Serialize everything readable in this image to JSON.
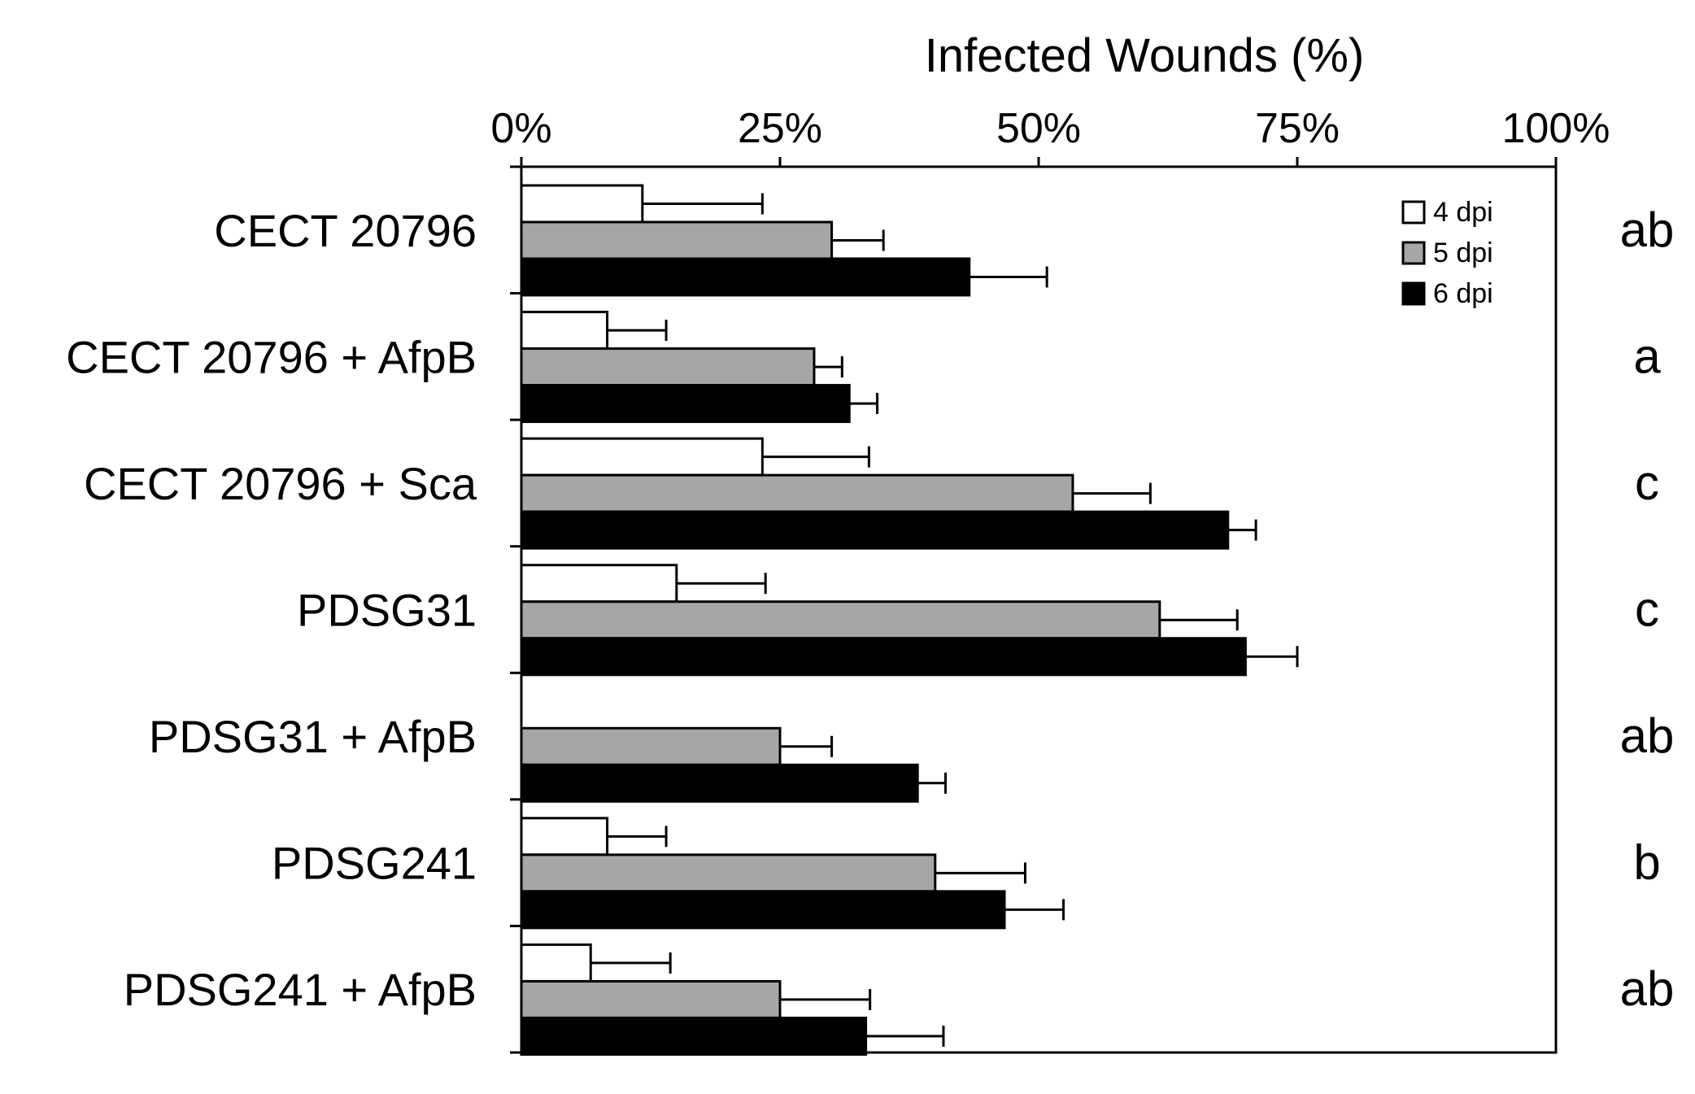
{
  "chart_data": {
    "type": "bar",
    "orientation": "horizontal",
    "title": "",
    "xlabel": "Infected Wounds (%)",
    "ylabel": "",
    "xlim": [
      0,
      100
    ],
    "x_ticks": [
      "0%",
      "25%",
      "50%",
      "75%",
      "100%"
    ],
    "x_tick_values": [
      0,
      25,
      50,
      75,
      100
    ],
    "grid": false,
    "legend_position": "top-right",
    "categories": [
      "CECT 20796",
      "CECT 20796 + AfpB",
      "CECT 20796 + Sca",
      "PDSG31",
      "PDSG31 + AfpB",
      "PDSG241",
      "PDSG241 + AfpB"
    ],
    "series": [
      {
        "name": "4 dpi",
        "color": "#ffffff",
        "values": [
          11.7,
          8.3,
          23.3,
          15,
          0,
          8.3,
          6.7
        ],
        "errors": [
          11.6,
          5.7,
          10.3,
          8.6,
          0,
          5.7,
          7.7
        ]
      },
      {
        "name": "5 dpi",
        "color": "#a6a6a6",
        "values": [
          30,
          28.3,
          53.3,
          61.7,
          25,
          40,
          25
        ],
        "errors": [
          5,
          2.7,
          7.5,
          7.5,
          5,
          8.7,
          8.7
        ]
      },
      {
        "name": "6 dpi",
        "color": "#000000",
        "values": [
          43.3,
          31.7,
          68.3,
          70,
          38.3,
          46.7,
          33.3
        ],
        "errors": [
          7.5,
          2.7,
          2.7,
          5,
          2.7,
          5.7,
          7.5
        ]
      }
    ],
    "significance_letters": [
      "ab",
      "a",
      "c",
      "c",
      "ab",
      "b",
      "ab"
    ]
  }
}
